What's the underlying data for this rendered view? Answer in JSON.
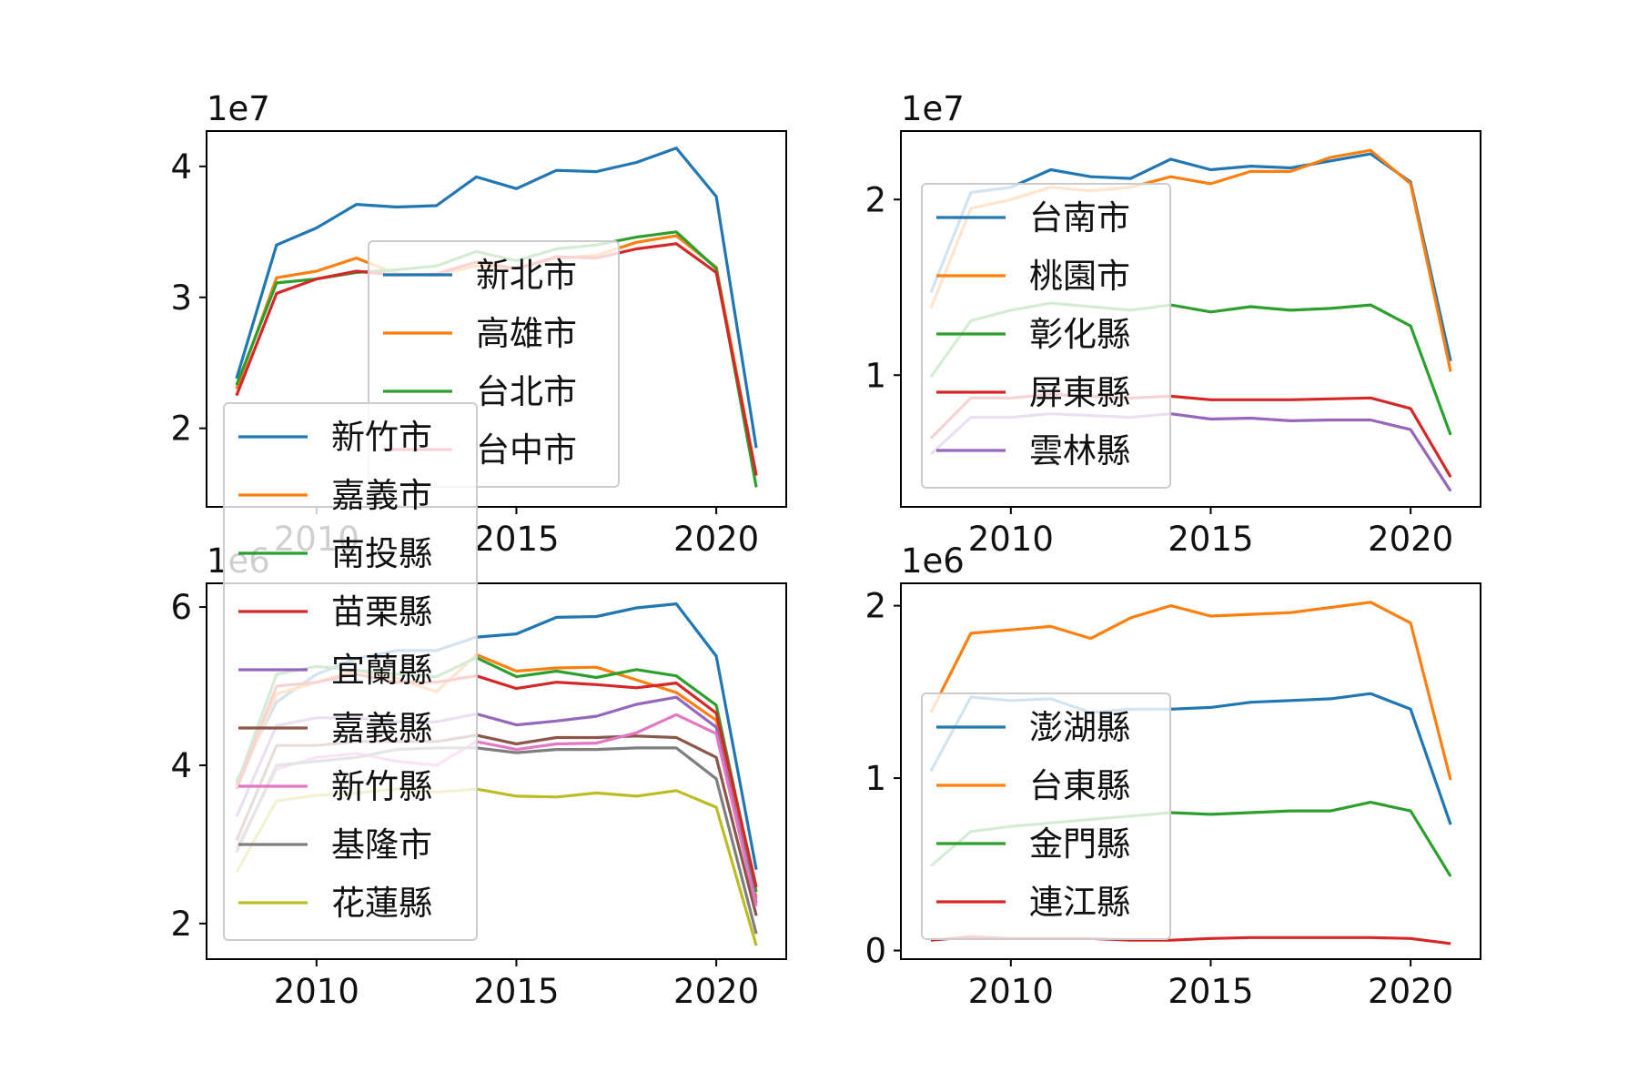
{
  "chart_data": [
    {
      "type": "line",
      "panel": "top-left",
      "x": [
        2008,
        2009,
        2010,
        2011,
        2012,
        2013,
        2014,
        2015,
        2016,
        2017,
        2018,
        2019,
        2020,
        2021
      ],
      "xlim": [
        2007.25,
        2021.75
      ],
      "ylim": [
        1.4,
        4.27
      ],
      "yscale_label": "1e7",
      "xticks": [
        2010,
        2015,
        2020
      ],
      "yticks": [
        2,
        3,
        4
      ],
      "legend_position": "center",
      "series": [
        {
          "name": "新北市",
          "color": "#1f77b4",
          "values": [
            2.38,
            3.4,
            3.53,
            3.71,
            3.69,
            3.7,
            3.92,
            3.83,
            3.97,
            3.96,
            4.03,
            4.14,
            3.77,
            1.85
          ]
        },
        {
          "name": "高雄市",
          "color": "#ff7f0e",
          "values": [
            2.3,
            3.15,
            3.2,
            3.3,
            3.18,
            3.17,
            3.24,
            3.22,
            3.3,
            3.32,
            3.42,
            3.47,
            3.23,
            1.64
          ]
        },
        {
          "name": "台北市",
          "color": "#2ca02c",
          "values": [
            2.33,
            3.11,
            3.14,
            3.19,
            3.21,
            3.24,
            3.35,
            3.28,
            3.37,
            3.4,
            3.46,
            3.5,
            3.22,
            1.55
          ]
        },
        {
          "name": "台中市",
          "color": "#d62728",
          "values": [
            2.25,
            3.03,
            3.14,
            3.2,
            3.17,
            3.18,
            3.27,
            3.22,
            3.31,
            3.3,
            3.37,
            3.41,
            3.19,
            1.64
          ]
        }
      ]
    },
    {
      "type": "line",
      "panel": "top-right",
      "x": [
        2008,
        2009,
        2010,
        2011,
        2012,
        2013,
        2014,
        2015,
        2016,
        2017,
        2018,
        2019,
        2020,
        2021
      ],
      "xlim": [
        2007.25,
        2021.75
      ],
      "ylim": [
        0.25,
        2.39
      ],
      "yscale_label": "1e7",
      "xticks": [
        2010,
        2015,
        2020
      ],
      "yticks": [
        1,
        2
      ],
      "legend_position": "center left",
      "series": [
        {
          "name": "台南市",
          "color": "#1f77b4",
          "values": [
            1.47,
            2.04,
            2.07,
            2.17,
            2.13,
            2.12,
            2.23,
            2.17,
            2.19,
            2.18,
            2.22,
            2.26,
            2.1,
            1.08
          ]
        },
        {
          "name": "桃園市",
          "color": "#ff7f0e",
          "values": [
            1.38,
            1.95,
            2.0,
            2.07,
            2.05,
            2.07,
            2.13,
            2.09,
            2.16,
            2.16,
            2.24,
            2.28,
            2.09,
            1.02
          ]
        },
        {
          "name": "彰化縣",
          "color": "#2ca02c",
          "values": [
            0.99,
            1.31,
            1.37,
            1.41,
            1.39,
            1.37,
            1.4,
            1.36,
            1.39,
            1.37,
            1.38,
            1.4,
            1.28,
            0.66
          ]
        },
        {
          "name": "屏東縣",
          "color": "#d62728",
          "values": [
            0.64,
            0.87,
            0.87,
            0.89,
            0.88,
            0.87,
            0.88,
            0.86,
            0.86,
            0.86,
            0.865,
            0.87,
            0.81,
            0.42
          ]
        },
        {
          "name": "雲林縣",
          "color": "#9467bd",
          "values": [
            0.55,
            0.76,
            0.76,
            0.78,
            0.77,
            0.76,
            0.78,
            0.75,
            0.755,
            0.74,
            0.745,
            0.745,
            0.69,
            0.34
          ]
        }
      ]
    },
    {
      "type": "line",
      "panel": "bottom-left",
      "x": [
        2008,
        2009,
        2010,
        2011,
        2012,
        2013,
        2014,
        2015,
        2016,
        2017,
        2018,
        2019,
        2020,
        2021
      ],
      "xlim": [
        2007.25,
        2021.75
      ],
      "ylim": [
        1.55,
        6.3
      ],
      "yscale_label": "1e6",
      "xticks": [
        2010,
        2015,
        2020
      ],
      "yticks": [
        2,
        4,
        6
      ],
      "legend_position": "left",
      "series": [
        {
          "name": "新竹市",
          "color": "#1f77b4",
          "values": [
            3.8,
            4.8,
            5.15,
            5.35,
            5.45,
            5.45,
            5.62,
            5.66,
            5.87,
            5.88,
            5.99,
            6.04,
            5.38,
            2.68
          ]
        },
        {
          "name": "嘉義市",
          "color": "#ff7f0e",
          "values": [
            3.7,
            4.9,
            5.05,
            5.2,
            5.1,
            4.93,
            5.4,
            5.19,
            5.23,
            5.24,
            5.08,
            4.92,
            4.57,
            2.32
          ]
        },
        {
          "name": "南投縣",
          "color": "#2ca02c",
          "values": [
            3.75,
            5.15,
            5.25,
            5.2,
            5.15,
            5.12,
            5.36,
            5.12,
            5.19,
            5.11,
            5.21,
            5.13,
            4.76,
            2.4
          ]
        },
        {
          "name": "苗栗縣",
          "color": "#d62728",
          "values": [
            3.7,
            5.0,
            5.05,
            5.15,
            5.05,
            5.05,
            5.13,
            4.97,
            5.05,
            5.02,
            4.98,
            5.04,
            4.66,
            2.46
          ]
        },
        {
          "name": "宜蘭縣",
          "color": "#9467bd",
          "values": [
            3.35,
            4.5,
            4.6,
            4.6,
            4.55,
            4.55,
            4.65,
            4.51,
            4.56,
            4.62,
            4.77,
            4.86,
            4.48,
            2.26
          ]
        },
        {
          "name": "嘉義縣",
          "color": "#8c564b",
          "values": [
            3.05,
            4.25,
            4.25,
            4.3,
            4.3,
            4.3,
            4.38,
            4.27,
            4.35,
            4.35,
            4.37,
            4.35,
            4.1,
            2.1
          ]
        },
        {
          "name": "新竹縣",
          "color": "#e377c2",
          "values": [
            2.95,
            3.95,
            4.1,
            4.15,
            4.05,
            4.0,
            4.3,
            4.2,
            4.27,
            4.28,
            4.41,
            4.64,
            4.4,
            2.22
          ]
        },
        {
          "name": "基隆市",
          "color": "#7f7f7f",
          "values": [
            2.9,
            4.0,
            4.05,
            4.1,
            4.2,
            4.22,
            4.22,
            4.16,
            4.2,
            4.2,
            4.22,
            4.22,
            3.83,
            1.87
          ]
        },
        {
          "name": "花蓮縣",
          "color": "#bcbd22",
          "values": [
            2.65,
            3.55,
            3.62,
            3.65,
            3.7,
            3.66,
            3.7,
            3.61,
            3.6,
            3.65,
            3.61,
            3.68,
            3.47,
            1.72
          ]
        }
      ]
    },
    {
      "type": "line",
      "panel": "bottom-right",
      "x": [
        2008,
        2009,
        2010,
        2011,
        2012,
        2013,
        2014,
        2015,
        2016,
        2017,
        2018,
        2019,
        2020,
        2021
      ],
      "xlim": [
        2007.25,
        2021.75
      ],
      "ylim": [
        -0.05,
        2.13
      ],
      "yscale_label": "1e6",
      "xticks": [
        2010,
        2015,
        2020
      ],
      "yticks": [
        0,
        1,
        2
      ],
      "legend_position": "center left",
      "series": [
        {
          "name": "澎湖縣",
          "color": "#1f77b4",
          "values": [
            1.04,
            1.47,
            1.45,
            1.46,
            1.38,
            1.4,
            1.4,
            1.41,
            1.44,
            1.45,
            1.46,
            1.49,
            1.4,
            0.73
          ]
        },
        {
          "name": "台東縣",
          "color": "#ff7f0e",
          "values": [
            1.38,
            1.84,
            1.86,
            1.88,
            1.81,
            1.93,
            2.0,
            1.94,
            1.95,
            1.96,
            1.99,
            2.02,
            1.9,
            0.99
          ]
        },
        {
          "name": "金門縣",
          "color": "#2ca02c",
          "values": [
            0.49,
            0.69,
            0.72,
            0.74,
            0.76,
            0.78,
            0.8,
            0.79,
            0.8,
            0.81,
            0.81,
            0.86,
            0.81,
            0.43
          ]
        },
        {
          "name": "連江縣",
          "color": "#d62728",
          "values": [
            0.06,
            0.08,
            0.07,
            0.07,
            0.07,
            0.06,
            0.06,
            0.07,
            0.075,
            0.075,
            0.075,
            0.075,
            0.07,
            0.04
          ]
        }
      ]
    }
  ]
}
